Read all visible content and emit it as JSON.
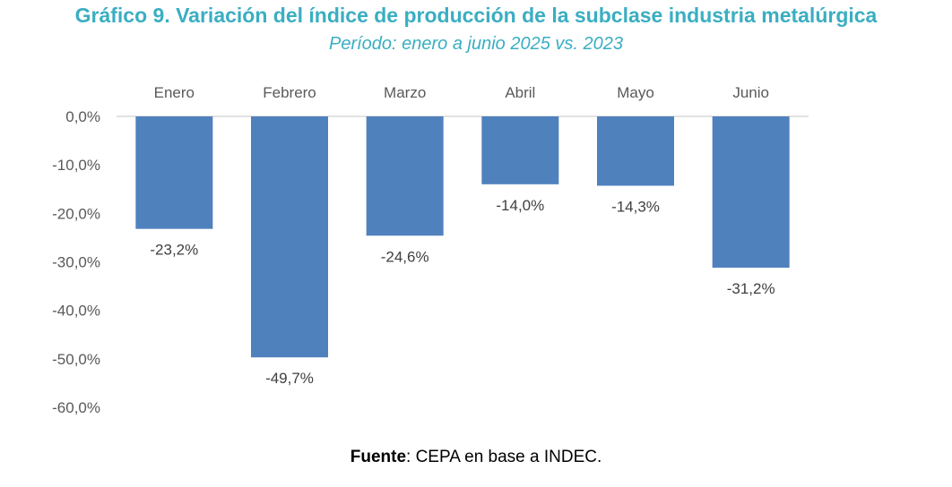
{
  "chart_data": {
    "type": "bar",
    "title": "Gráfico 9. Variación del índice de producción de la subclase industria metalúrgica",
    "subtitle": "Período: enero a junio 2025 vs. 2023",
    "categories": [
      "Enero",
      "Febrero",
      "Marzo",
      "Abril",
      "Mayo",
      "Junio"
    ],
    "values": [
      -23.2,
      -49.7,
      -24.6,
      -14.0,
      -14.3,
      -31.2
    ],
    "data_labels": [
      "-23,2%",
      "-49,7%",
      "-24,6%",
      "-14,0%",
      "-14,3%",
      "-31,2%"
    ],
    "y_ticks": [
      0,
      -10,
      -20,
      -30,
      -40,
      -50,
      -60
    ],
    "y_tick_labels": [
      "0,0%",
      "-10,0%",
      "-20,0%",
      "-30,0%",
      "-40,0%",
      "-50,0%",
      "-60,0%"
    ],
    "ylim": [
      -60,
      0
    ],
    "xlabel": "",
    "ylabel": "",
    "grid": false,
    "bar_color": "#4f81bd"
  },
  "source": {
    "label": "Fuente",
    "text": ": CEPA en base a INDEC."
  }
}
